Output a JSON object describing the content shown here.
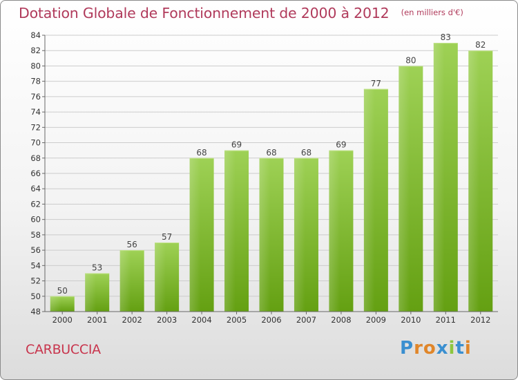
{
  "header": {
    "title": "Dotation Globale de Fonctionnement de 2000 à 2012",
    "unit": "(en milliers d'€)"
  },
  "footer": {
    "commune": "CARBUCCIA",
    "brand": "Proxiti",
    "brand_colors": [
      "#3a8fd0",
      "#e0862a",
      "#e0862a",
      "#3a8fd0",
      "#8cc63f",
      "#3a8fd0",
      "#e0862a"
    ]
  },
  "colors": {
    "title": "#b03a5b",
    "commune": "#c8354d",
    "bar_light": "#9ed155",
    "bar_dark": "#64a012",
    "grid": "#cccccc",
    "axis": "#666666"
  },
  "chart_data": {
    "type": "bar",
    "title": "Dotation Globale de Fonctionnement de 2000 à 2012",
    "subtitle": "(en milliers d'€)",
    "categories": [
      "2000",
      "2001",
      "2002",
      "2003",
      "2004",
      "2005",
      "2006",
      "2007",
      "2008",
      "2009",
      "2010",
      "2011",
      "2012"
    ],
    "values": [
      50,
      53,
      56,
      57,
      68,
      69,
      68,
      68,
      69,
      77,
      80,
      83,
      82
    ],
    "xlabel": "",
    "ylabel": "",
    "ylim": [
      48,
      84
    ],
    "yticks": [
      48,
      50,
      52,
      54,
      56,
      58,
      60,
      62,
      64,
      66,
      68,
      70,
      72,
      74,
      76,
      78,
      80,
      82,
      84
    ],
    "grid": true,
    "legend": "none"
  }
}
